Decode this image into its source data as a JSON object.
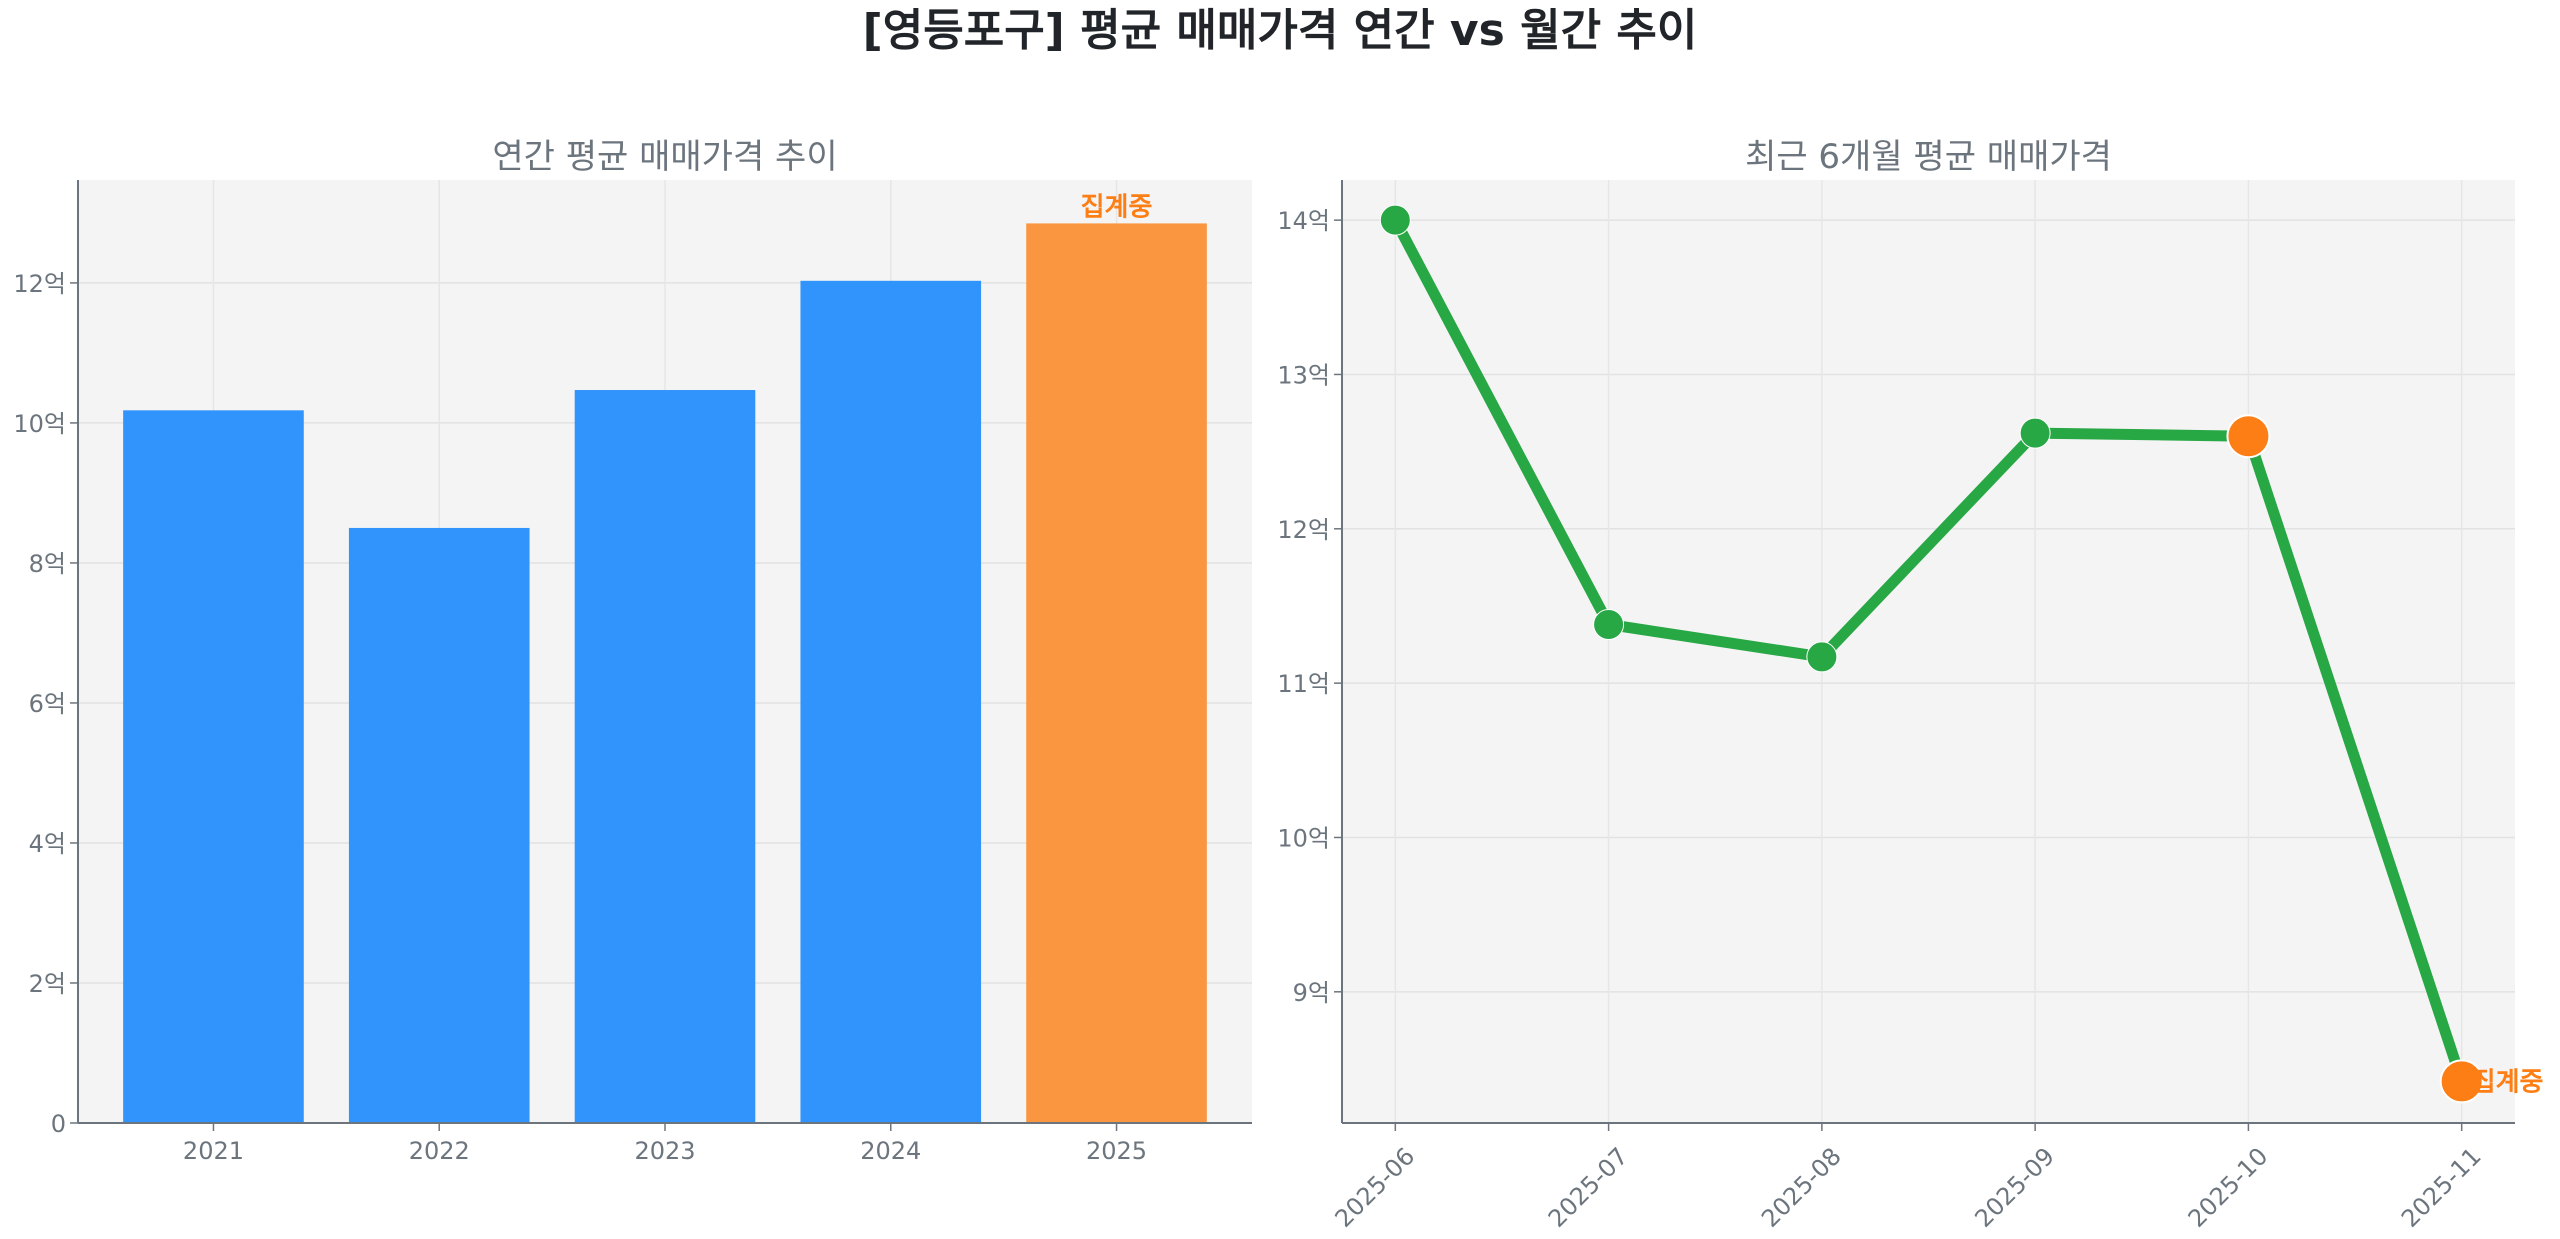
{
  "title": "[영등포구] 평균 매매가격 연간 vs 월간 추이",
  "colors": {
    "bar": "#3193fc",
    "bar_current": "#f9963f",
    "line": "#28a745",
    "marker_current": "#fd7e14",
    "annotation": "#fd7e14",
    "text": "#6c757d",
    "title": "#212529",
    "background": "#f4f4f4"
  },
  "chart_data": [
    {
      "type": "bar",
      "title": "연간 평균 매매가격 추이",
      "categories": [
        "2021",
        "2022",
        "2023",
        "2024",
        "2025"
      ],
      "values": [
        10.18,
        8.5,
        10.47,
        12.03,
        12.85
      ],
      "unit": "억",
      "yticks": [
        0,
        2,
        4,
        6,
        8,
        10,
        12
      ],
      "ytick_labels": [
        "0",
        "2억",
        "4억",
        "6억",
        "8억",
        "10억",
        "12억"
      ],
      "ylim": [
        0,
        13.47
      ],
      "grid": true,
      "highlight_index": 4,
      "annotation": {
        "index": 4,
        "text": "집계중"
      }
    },
    {
      "type": "line",
      "title": "최근 6개월 평균 매매가격",
      "categories": [
        "2025-06",
        "2025-07",
        "2025-08",
        "2025-09",
        "2025-10",
        "2025-11"
      ],
      "values": [
        14.0,
        11.38,
        11.17,
        12.62,
        12.6,
        8.42
      ],
      "unit": "억",
      "yticks": [
        9,
        10,
        11,
        12,
        13,
        14
      ],
      "ytick_labels": [
        "9억",
        "10억",
        "11억",
        "12억",
        "13억",
        "14억"
      ],
      "ylim": [
        8.15,
        14.26
      ],
      "grid": true,
      "highlight_indices": [
        4,
        5
      ],
      "annotation": {
        "index": 5,
        "text": "집계중"
      }
    }
  ]
}
